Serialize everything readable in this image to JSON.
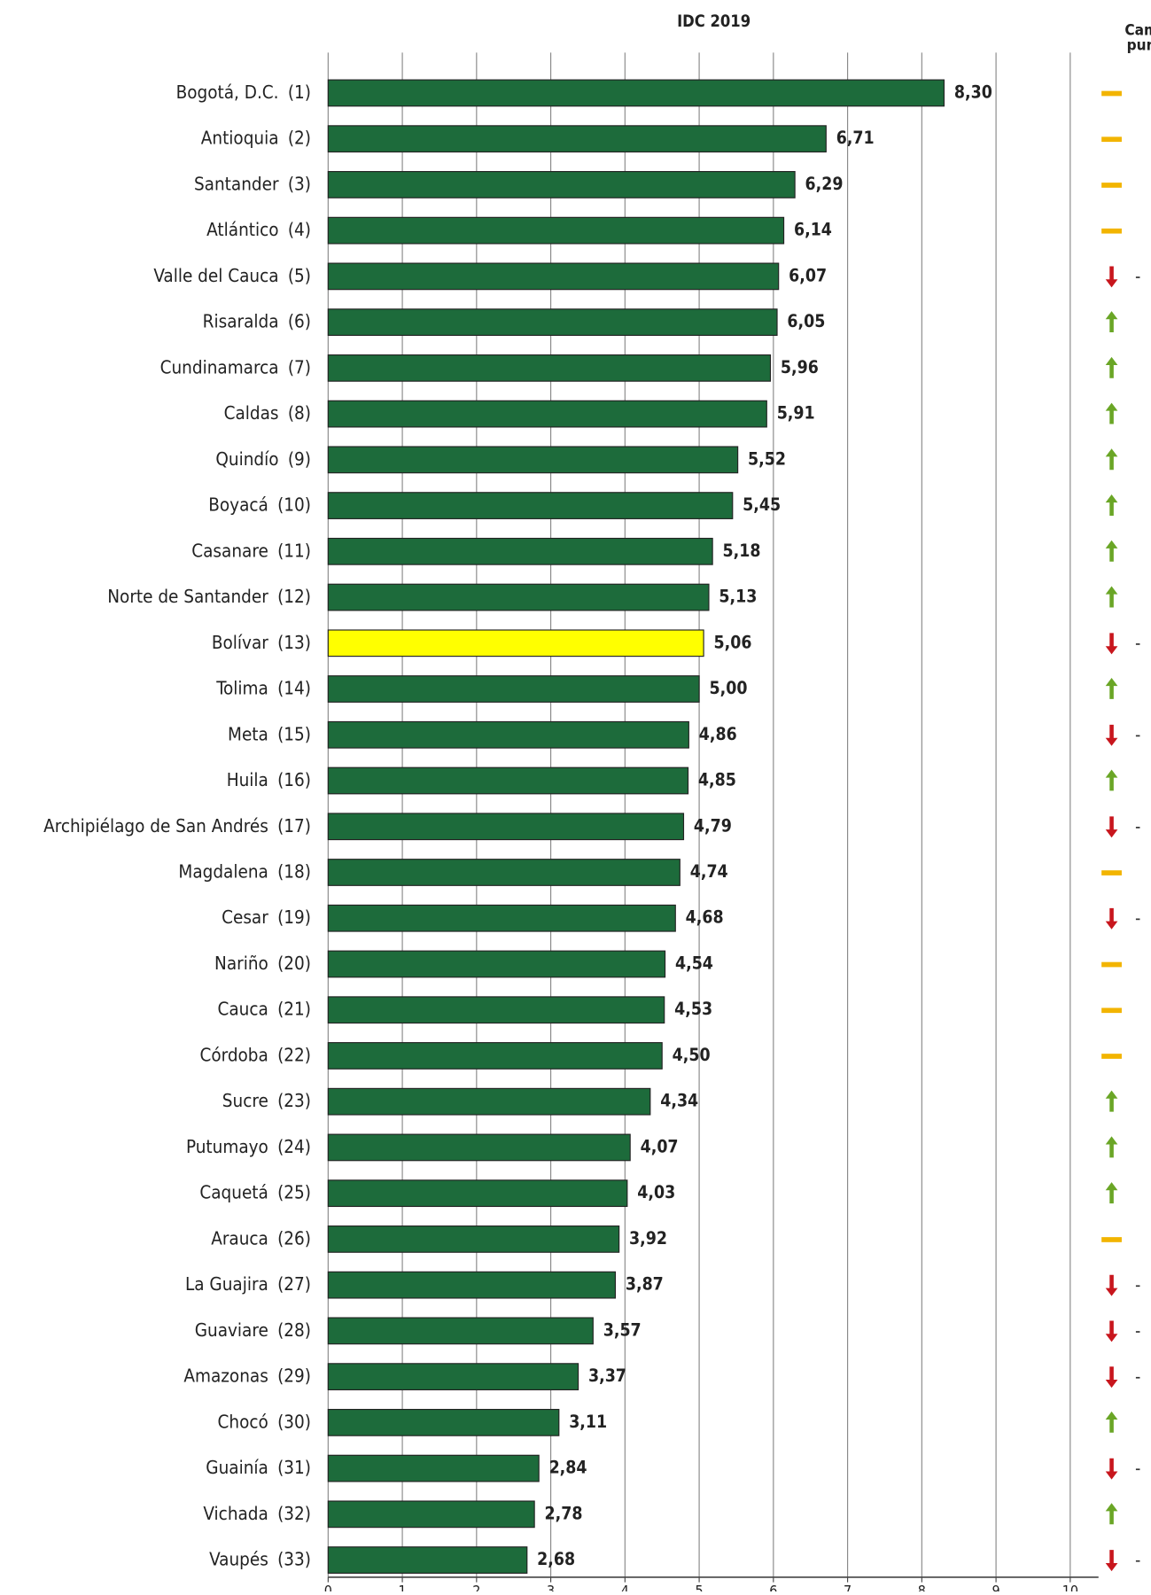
{
  "chart_data": {
    "type": "bar",
    "orientation": "horizontal",
    "title": "IDC 2019",
    "change_header": [
      "Camb",
      "pun"
    ],
    "categories": [
      "Bogotá, D.C.",
      "Antioquia",
      "Santander",
      "Atlántico",
      "Valle del Cauca",
      "Risaralda",
      "Cundinamarca",
      "Caldas",
      "Quindío",
      "Boyacá",
      "Casanare",
      "Norte de Santander",
      "Bolívar",
      "Tolima",
      "Meta",
      "Huila",
      "Archipiélago de San Andrés",
      "Magdalena",
      "Cesar",
      "Nariño",
      "Cauca",
      "Córdoba",
      "Sucre",
      "Putumayo",
      "Caquetá",
      "Arauca",
      "La Guajira",
      "Guaviare",
      "Amazonas",
      "Chocó",
      "Guainía",
      "Vichada",
      "Vaupés"
    ],
    "ranks": [
      "(1)",
      "(2)",
      "(3)",
      "(4)",
      "(5)",
      "(6)",
      "(7)",
      "(8)",
      "(9)",
      "(10)",
      "(11)",
      "(12)",
      "(13)",
      "(14)",
      "(15)",
      "(16)",
      "(17)",
      "(18)",
      "(19)",
      "(20)",
      "(21)",
      "(22)",
      "(23)",
      "(24)",
      "(25)",
      "(26)",
      "(27)",
      "(28)",
      "(29)",
      "(30)",
      "(31)",
      "(32)",
      "(33)"
    ],
    "values": [
      8.3,
      6.71,
      6.29,
      6.14,
      6.07,
      6.05,
      5.96,
      5.91,
      5.52,
      5.45,
      5.18,
      5.13,
      5.06,
      5.0,
      4.86,
      4.85,
      4.79,
      4.74,
      4.68,
      4.54,
      4.53,
      4.5,
      4.34,
      4.07,
      4.03,
      3.92,
      3.87,
      3.57,
      3.37,
      3.11,
      2.84,
      2.78,
      2.68
    ],
    "value_labels": [
      "8,30",
      "6,71",
      "6,29",
      "6,14",
      "6,07",
      "6,05",
      "5,96",
      "5,91",
      "5,52",
      "5,45",
      "5,18",
      "5,13",
      "5,06",
      "5,00",
      "4,86",
      "4,85",
      "4,79",
      "4,74",
      "4,68",
      "4,54",
      "4,53",
      "4,50",
      "4,34",
      "4,07",
      "4,03",
      "3,92",
      "3,87",
      "3,57",
      "3,37",
      "3,11",
      "2,84",
      "2,78",
      "2,68"
    ],
    "trend": [
      "same",
      "same",
      "same",
      "same",
      "down",
      "up",
      "up",
      "up",
      "up",
      "up",
      "up",
      "up",
      "down",
      "up",
      "down",
      "up",
      "down",
      "same",
      "down",
      "same",
      "same",
      "same",
      "up",
      "up",
      "up",
      "same",
      "down",
      "down",
      "down",
      "up",
      "down",
      "up",
      "down"
    ],
    "color": "#1d6b3b",
    "highlight_index": 12,
    "highlight_color": "#ffff00",
    "xlim": [
      0,
      10
    ],
    "xticks": [
      0,
      1,
      2,
      3,
      4,
      5,
      6,
      7,
      8,
      9,
      10
    ],
    "grid": true
  }
}
